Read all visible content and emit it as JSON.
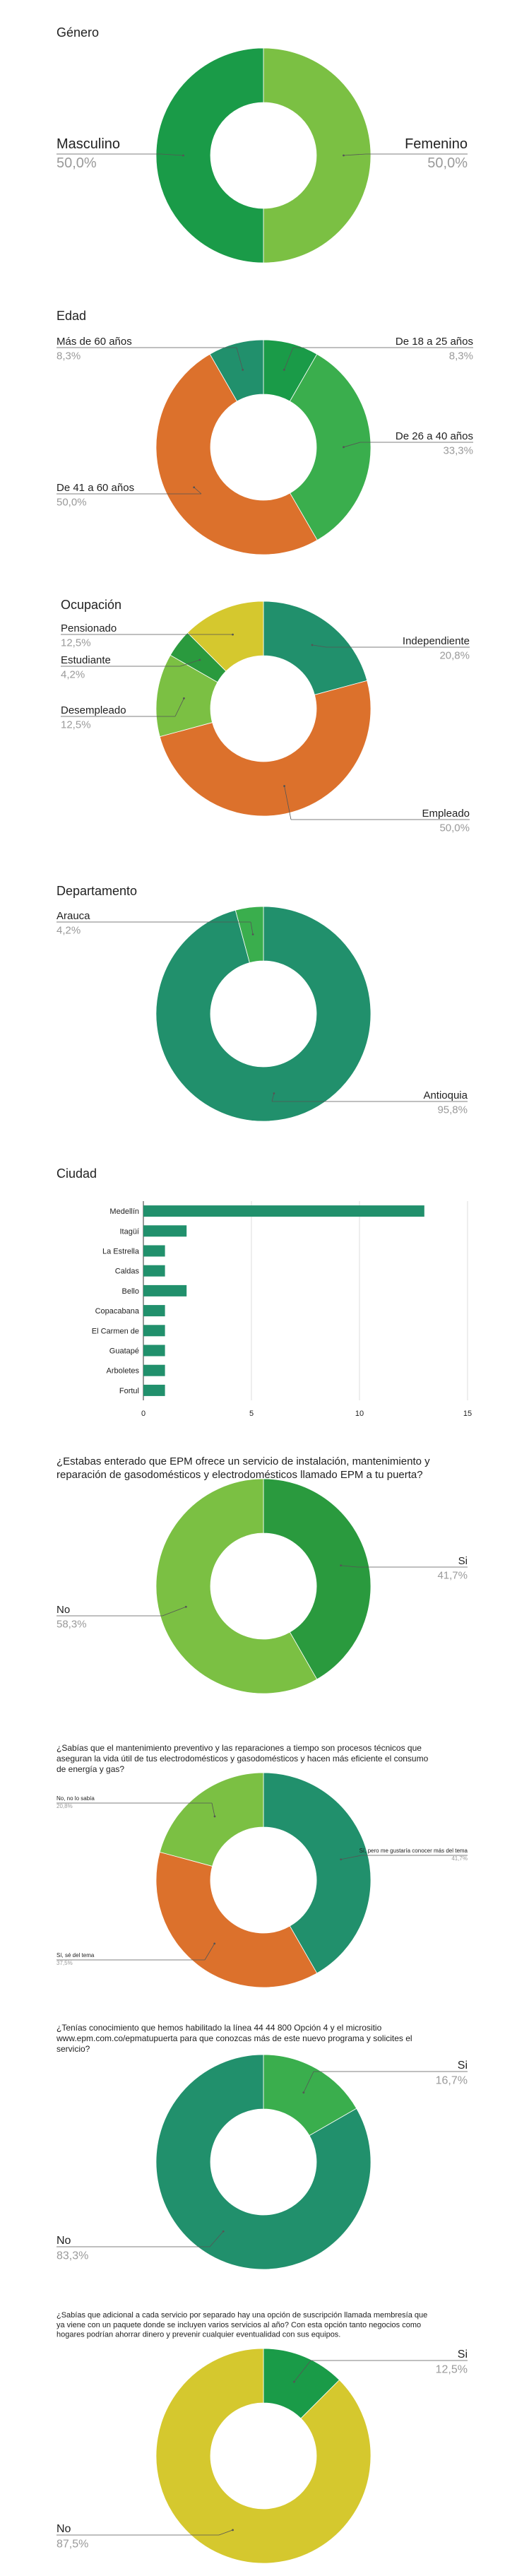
{
  "colors": {
    "dark_green": "#1a9b48",
    "light_green": "#7bc043",
    "mid_green": "#3aae4d",
    "forest_green": "#2a9a3e",
    "teal": "#21906c",
    "orange": "#dc712c",
    "yellow": "#d5c82e",
    "label_gray": "#9a9a9a",
    "line_gray": "#555555"
  },
  "chart_data": [
    {
      "id": "genero",
      "type": "pie",
      "title": "Género",
      "slices": [
        {
          "label": "Femenino",
          "value": 50.0,
          "pct_text": "50,0%",
          "color": "#7bc043"
        },
        {
          "label": "Masculino",
          "value": 50.0,
          "pct_text": "50,0%",
          "color": "#1a9b48"
        }
      ]
    },
    {
      "id": "edad",
      "type": "pie",
      "title": "Edad",
      "slices": [
        {
          "label": "De 18 a 25 años",
          "value": 8.3,
          "pct_text": "8,3%",
          "color": "#1a9b48"
        },
        {
          "label": "De 26 a 40 años",
          "value": 33.3,
          "pct_text": "33,3%",
          "color": "#3aae4d"
        },
        {
          "label": "De 41 a 60 años",
          "value": 50.0,
          "pct_text": "50,0%",
          "color": "#dc712c"
        },
        {
          "label": "Más de 60 años",
          "value": 8.3,
          "pct_text": "8,3%",
          "color": "#21906c"
        }
      ]
    },
    {
      "id": "ocupacion",
      "type": "pie",
      "title": "Ocupación",
      "slices": [
        {
          "label": "Independiente",
          "value": 20.8,
          "pct_text": "20,8%",
          "color": "#21906c"
        },
        {
          "label": "Empleado",
          "value": 50.0,
          "pct_text": "50,0%",
          "color": "#dc712c"
        },
        {
          "label": "Desempleado",
          "value": 12.5,
          "pct_text": "12,5%",
          "color": "#7bc043"
        },
        {
          "label": "Estudiante",
          "value": 4.2,
          "pct_text": "4,2%",
          "color": "#2a9a3e"
        },
        {
          "label": "Pensionado",
          "value": 12.5,
          "pct_text": "12,5%",
          "color": "#d5c82e"
        }
      ]
    },
    {
      "id": "departamento",
      "type": "pie",
      "title": "Departamento",
      "slices": [
        {
          "label": "Antioquia",
          "value": 95.8,
          "pct_text": "95,8%",
          "color": "#21906c"
        },
        {
          "label": "Arauca",
          "value": 4.2,
          "pct_text": "4,2%",
          "color": "#3aae4d"
        }
      ]
    },
    {
      "id": "ciudad",
      "type": "bar",
      "orientation": "horizontal",
      "title": "Ciudad",
      "categories": [
        "Medellín",
        "Itagüí",
        "La Estrella",
        "Caldas",
        "Bello",
        "Copacabana",
        "El Carmen de",
        "Guatapé",
        "Arboletes",
        "Fortul"
      ],
      "values": [
        13,
        2,
        1,
        1,
        2,
        1,
        1,
        1,
        1,
        1
      ],
      "xlim": [
        0,
        15
      ],
      "xticks": [
        "0",
        "5",
        "10",
        "15"
      ],
      "grid": true,
      "color": "#21906c"
    },
    {
      "id": "epm_puerta",
      "type": "pie",
      "title": "¿Estabas enterado que EPM ofrece un servicio de instalación, mantenimiento y reparación de gasodomésticos y electrodomésticos llamado EPM a tu puerta?",
      "slices": [
        {
          "label": "Si",
          "value": 41.7,
          "pct_text": "41,7%",
          "color": "#2a9a3e"
        },
        {
          "label": "No",
          "value": 58.3,
          "pct_text": "58,3%",
          "color": "#7bc043"
        }
      ]
    },
    {
      "id": "mantenimiento",
      "type": "pie",
      "title": "¿Sabías que el mantenimiento preventivo y las reparaciones a tiempo son procesos técnicos que aseguran la vida útil de tus electrodomésticos y gasodomésticos y hacen más eficiente el consumo de energía y gas?",
      "slices": [
        {
          "label": "Sí, pero me gustaría conocer más del tema",
          "value": 41.7,
          "pct_text": "41,7%",
          "color": "#21906c"
        },
        {
          "label": "Sí, sé del tema",
          "value": 37.5,
          "pct_text": "37,5%",
          "color": "#dc712c"
        },
        {
          "label": "No, no lo sabía",
          "value": 20.8,
          "pct_text": "20,8%",
          "color": "#7bc043"
        }
      ]
    },
    {
      "id": "linea",
      "type": "pie",
      "title": "¿Tenías conocimiento que hemos habilitado la línea 44 44 800 Opción 4 y el micrositio www.epm.com.co/epmatupuerta para que conozcas más de este nuevo programa y solicites el servicio?",
      "slices": [
        {
          "label": "Si",
          "value": 16.7,
          "pct_text": "16,7%",
          "color": "#3aae4d"
        },
        {
          "label": "No",
          "value": 83.3,
          "pct_text": "83,3%",
          "color": "#21906c"
        }
      ]
    },
    {
      "id": "membresia",
      "type": "pie",
      "title": "¿Sabías que adicional a cada servicio por separado hay una opción de suscripción llamada membresía que ya viene con un paquete donde se incluyen varios servicios al año? Con esta opción tanto negocios como hogares podrían ahorrar dinero y prevenir cualquier eventualidad con sus equipos.",
      "slices": [
        {
          "label": "Si",
          "value": 12.5,
          "pct_text": "12,5%",
          "color": "#1a9b48"
        },
        {
          "label": "No",
          "value": 87.5,
          "pct_text": "87,5%",
          "color": "#d5c82e"
        }
      ]
    }
  ]
}
